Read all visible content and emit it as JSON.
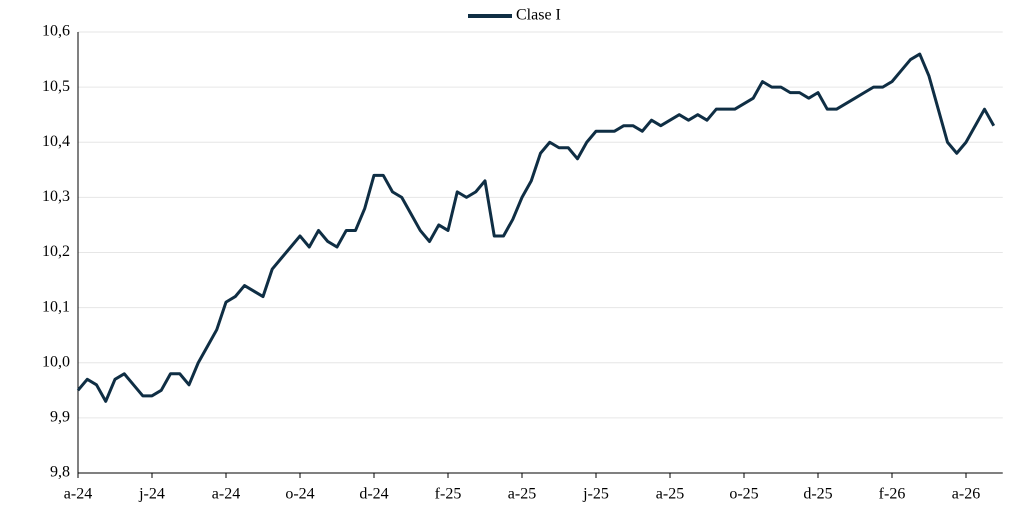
{
  "chart_data": {
    "type": "line",
    "categories": [
      "a-24",
      null,
      null,
      null,
      null,
      null,
      null,
      null,
      "j-24",
      null,
      null,
      null,
      null,
      null,
      null,
      null,
      "a-24",
      null,
      null,
      null,
      null,
      null,
      null,
      null,
      "o-24",
      null,
      null,
      null,
      null,
      null,
      null,
      null,
      "d-24",
      null,
      null,
      null,
      null,
      null,
      null,
      null,
      "f-25",
      null,
      null,
      null,
      null,
      null,
      null,
      null,
      "a-25",
      null,
      null,
      null,
      null,
      null,
      null,
      null,
      "j-25",
      null,
      null,
      null,
      null,
      null,
      null,
      null,
      "a-25",
      null,
      null,
      null,
      null,
      null,
      null,
      null,
      "o-25",
      null,
      null,
      null,
      null,
      null,
      null,
      null,
      "d-25",
      null,
      null,
      null,
      null,
      null,
      null,
      null,
      "f-26",
      null,
      null,
      null,
      null,
      null,
      null,
      null,
      "a-26",
      null,
      null,
      null
    ],
    "series": [
      {
        "name": "Clase I",
        "color": "#0f2e44",
        "values": [
          9.95,
          9.97,
          9.96,
          9.93,
          9.97,
          9.98,
          9.96,
          9.94,
          9.94,
          9.95,
          9.98,
          9.98,
          9.96,
          10.0,
          10.03,
          10.06,
          10.11,
          10.12,
          10.14,
          10.13,
          10.12,
          10.17,
          10.19,
          10.21,
          10.23,
          10.21,
          10.24,
          10.22,
          10.21,
          10.24,
          10.24,
          10.28,
          10.34,
          10.34,
          10.31,
          10.3,
          10.27,
          10.24,
          10.22,
          10.25,
          10.24,
          10.31,
          10.3,
          10.31,
          10.33,
          10.23,
          10.23,
          10.26,
          10.3,
          10.33,
          10.38,
          10.4,
          10.39,
          10.39,
          10.37,
          10.4,
          10.42,
          10.42,
          10.42,
          10.43,
          10.43,
          10.42,
          10.44,
          10.43,
          10.44,
          10.45,
          10.44,
          10.45,
          10.44,
          10.46,
          10.46,
          10.46,
          10.47,
          10.48,
          10.51,
          10.5,
          10.5,
          10.49,
          10.49,
          10.48,
          10.49,
          10.46,
          10.46,
          10.47,
          10.48,
          10.49,
          10.5,
          10.5,
          10.51,
          10.53,
          10.55,
          10.56,
          10.52,
          10.46,
          10.4,
          10.38,
          10.4,
          10.43,
          10.46,
          10.43
        ]
      }
    ],
    "ylim": [
      9.8,
      10.6
    ],
    "yticks": [
      {
        "value": 9.8,
        "label": "9,8"
      },
      {
        "value": 9.9,
        "label": "9,9"
      },
      {
        "value": 10.0,
        "label": "10,0"
      },
      {
        "value": 10.1,
        "label": "10,1"
      },
      {
        "value": 10.2,
        "label": "10,2"
      },
      {
        "value": 10.3,
        "label": "10,3"
      },
      {
        "value": 10.4,
        "label": "10,4"
      },
      {
        "value": 10.5,
        "label": "10,5"
      },
      {
        "value": 10.6,
        "label": "10,6"
      }
    ],
    "grid": true,
    "legend": "top"
  }
}
